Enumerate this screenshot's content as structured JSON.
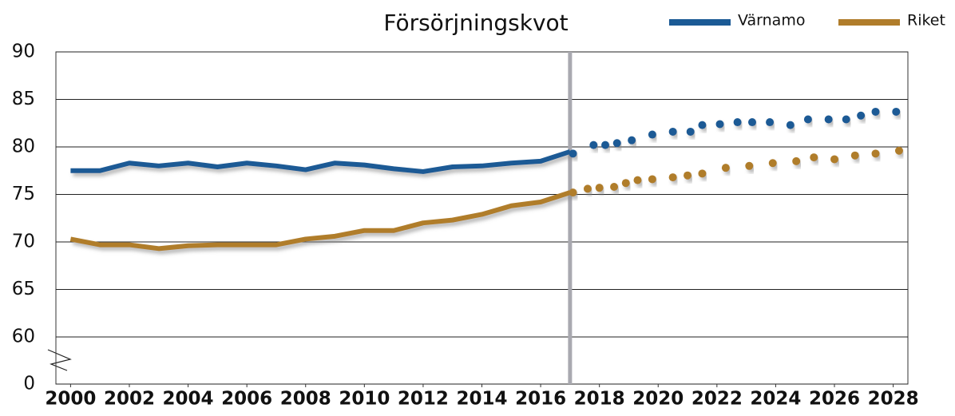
{
  "chart_data": {
    "type": "line",
    "title": "Försörjningskvot",
    "x": [
      2000,
      2001,
      2002,
      2003,
      2004,
      2005,
      2006,
      2007,
      2008,
      2009,
      2010,
      2011,
      2012,
      2013,
      2014,
      2015,
      2016,
      2017
    ],
    "series": [
      {
        "name": "Värnamo",
        "color": "#1b5a95",
        "values": [
          77.5,
          77.5,
          78.3,
          78.0,
          78.3,
          77.9,
          78.3,
          78.0,
          77.6,
          78.3,
          78.1,
          77.7,
          77.4,
          77.9,
          78.0,
          78.3,
          78.5,
          79.5
        ],
        "forecast_x": [
          2017.1,
          2017.8,
          2018.2,
          2018.6,
          2019.1,
          2019.8,
          2020.5,
          2021.1,
          2021.5,
          2022.1,
          2022.7,
          2023.2,
          2023.8,
          2024.5,
          2025.1,
          2025.8,
          2026.4,
          2026.9,
          2027.4,
          2028.1
        ],
        "forecast_values": [
          79.3,
          80.2,
          80.2,
          80.4,
          80.7,
          81.3,
          81.6,
          81.6,
          82.3,
          82.4,
          82.6,
          82.6,
          82.6,
          82.3,
          82.9,
          82.9,
          82.9,
          83.3,
          83.7,
          83.7
        ]
      },
      {
        "name": "Riket",
        "color": "#b07d2b",
        "values": [
          70.3,
          69.7,
          69.7,
          69.3,
          69.6,
          69.7,
          69.7,
          69.7,
          70.3,
          70.6,
          71.2,
          71.2,
          72.0,
          72.3,
          72.9,
          73.8,
          74.2,
          75.2
        ],
        "forecast_x": [
          2017.1,
          2017.6,
          2018.0,
          2018.5,
          2018.9,
          2019.3,
          2019.8,
          2020.5,
          2021.0,
          2021.5,
          2022.3,
          2023.1,
          2023.9,
          2024.7,
          2025.3,
          2026.0,
          2026.7,
          2027.4,
          2028.2
        ],
        "forecast_values": [
          75.2,
          75.6,
          75.7,
          75.8,
          76.2,
          76.5,
          76.6,
          76.8,
          77.0,
          77.2,
          77.8,
          78.0,
          78.3,
          78.5,
          78.9,
          78.7,
          79.1,
          79.3,
          79.6
        ]
      }
    ],
    "xlim": [
      1999.5,
      2028.5
    ],
    "xticks": [
      2000,
      2002,
      2004,
      2006,
      2008,
      2010,
      2012,
      2014,
      2016,
      2018,
      2020,
      2022,
      2024,
      2026,
      2028
    ],
    "ylim": [
      0,
      90
    ],
    "yticks": [
      0,
      60,
      65,
      70,
      75,
      80,
      85,
      90
    ],
    "axis_break": [
      0,
      60
    ],
    "marker_x": 2017,
    "grid": true
  }
}
